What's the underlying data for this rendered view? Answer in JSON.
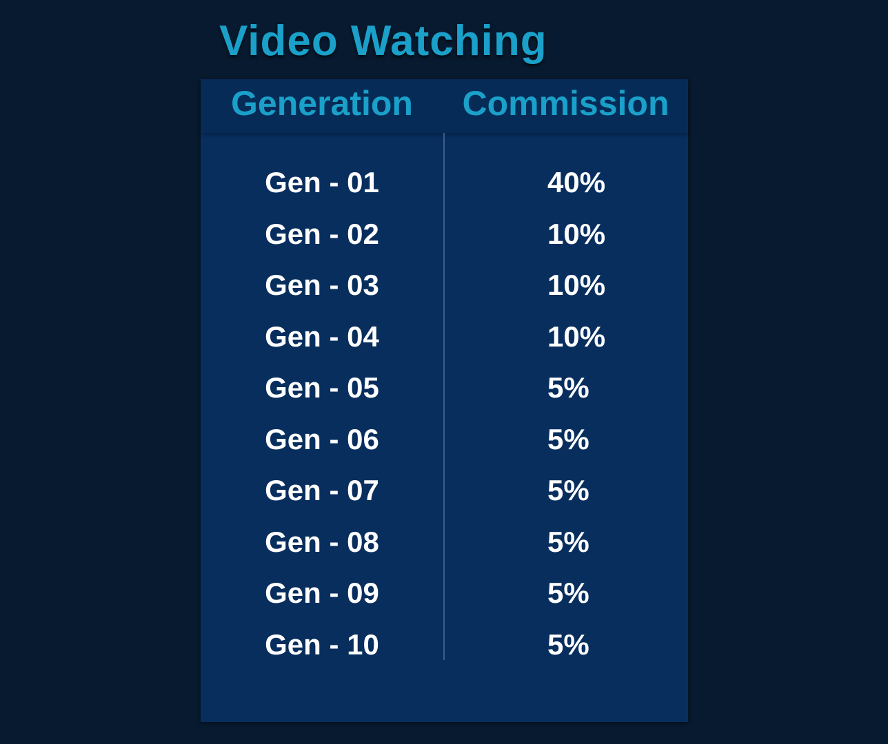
{
  "title": "Video Watching",
  "table": {
    "headers": {
      "generation": "Generation",
      "commission": "Commission"
    },
    "rows": [
      {
        "generation": "Gen - 01",
        "commission": "40%"
      },
      {
        "generation": "Gen - 02",
        "commission": "10%"
      },
      {
        "generation": "Gen - 03",
        "commission": "10%"
      },
      {
        "generation": "Gen - 04",
        "commission": "10%"
      },
      {
        "generation": "Gen - 05",
        "commission": "5%"
      },
      {
        "generation": "Gen - 06",
        "commission": "5%"
      },
      {
        "generation": "Gen - 07",
        "commission": "5%"
      },
      {
        "generation": "Gen - 08",
        "commission": "5%"
      },
      {
        "generation": "Gen - 09",
        "commission": "5%"
      },
      {
        "generation": "Gen - 10",
        "commission": "5%"
      }
    ]
  },
  "colors": {
    "background": "#081a2f",
    "card": "#082e5e",
    "accent": "#1aa0c9",
    "text": "#ffffff"
  }
}
